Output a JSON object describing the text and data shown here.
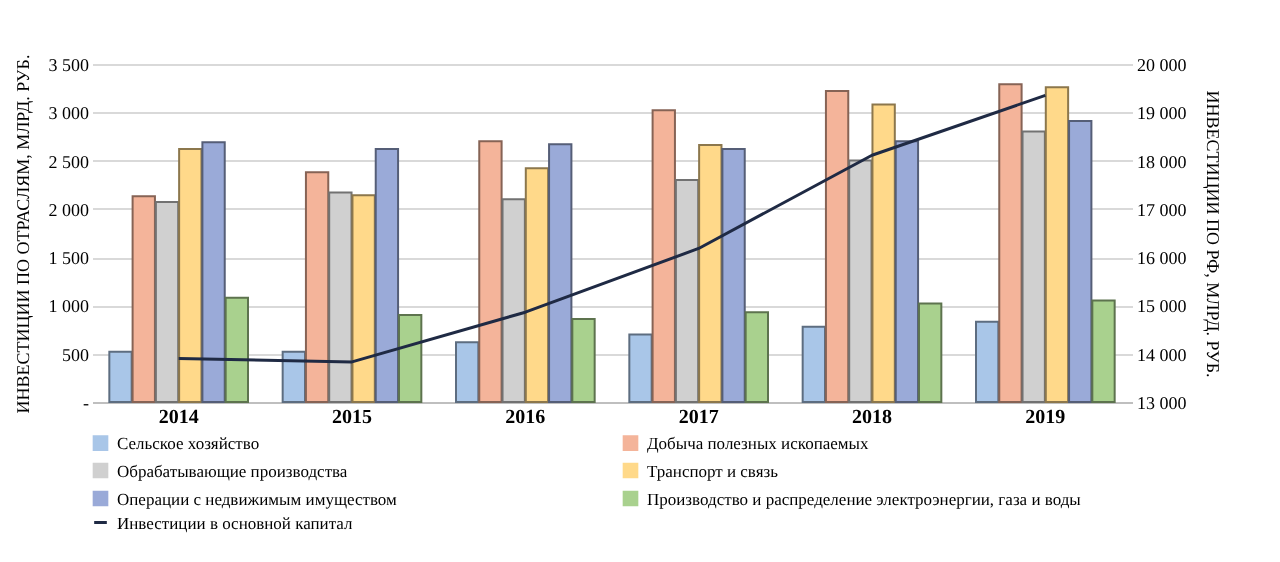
{
  "chart_data": {
    "type": "bar",
    "categories": [
      "2014",
      "2015",
      "2016",
      "2017",
      "2018",
      "2019"
    ],
    "ylabel": "ИНВЕСТИЦИИ ПО ОТРАСЛЯМ, МЛРД. РУБ.",
    "y2label": "ИНВЕСТИЦИИ ПО РФ, МЛРД. РУБ.",
    "ylim": [
      0,
      3500
    ],
    "yticks": [
      {
        "value": 0,
        "label": "-"
      },
      500,
      {
        "value": 1000,
        "label": "1 000"
      },
      {
        "value": 1500,
        "label": "1 500"
      },
      {
        "value": 2000,
        "label": "2 000"
      },
      {
        "value": 2500,
        "label": "2 500"
      },
      {
        "value": 3000,
        "label": "3 000"
      },
      {
        "value": 3500,
        "label": "3 500"
      }
    ],
    "y2lim": [
      13000,
      20000
    ],
    "y2ticks": [
      {
        "value": 13000,
        "label": "13 000"
      },
      {
        "value": 14000,
        "label": "14 000"
      },
      {
        "value": 15000,
        "label": "15 000"
      },
      {
        "value": 16000,
        "label": "16 000"
      },
      {
        "value": 17000,
        "label": "17 000"
      },
      {
        "value": 18000,
        "label": "18 000"
      },
      {
        "value": 19000,
        "label": "19 000"
      },
      {
        "value": 20000,
        "label": "20 000"
      }
    ],
    "grid": "y",
    "legend": "bottom",
    "series": [
      {
        "name": "Сельское хозяйство",
        "color": "#a9c6e8",
        "values": [
          520,
          520,
          620,
          700,
          780,
          830
        ]
      },
      {
        "name": "Добыча полезных ископаемых",
        "color": "#f4b49a",
        "values": [
          2130,
          2380,
          2700,
          3020,
          3220,
          3290
        ]
      },
      {
        "name": "Обрабатывающие производства",
        "color": "#d0d0d0",
        "values": [
          2070,
          2170,
          2100,
          2300,
          2500,
          2800
        ]
      },
      {
        "name": "Транспорт и связь",
        "color": "#ffd98a",
        "values": [
          2620,
          2140,
          2420,
          2660,
          3080,
          3260
        ]
      },
      {
        "name": "Операции с недвижимым имуществом",
        "color": "#9aaad8",
        "values": [
          2690,
          2620,
          2670,
          2620,
          2700,
          2910
        ]
      },
      {
        "name": "Производство и распределение электроэнергии, газа и воды",
        "color": "#a9d18e",
        "values": [
          1080,
          900,
          860,
          930,
          1020,
          1050
        ]
      },
      {
        "name": "Инвестиции в основной капитал",
        "type": "line",
        "axis": "y2",
        "color": "#1f2a44",
        "values": [
          13900,
          13830,
          14860,
          16180,
          18110,
          19350
        ]
      }
    ]
  }
}
